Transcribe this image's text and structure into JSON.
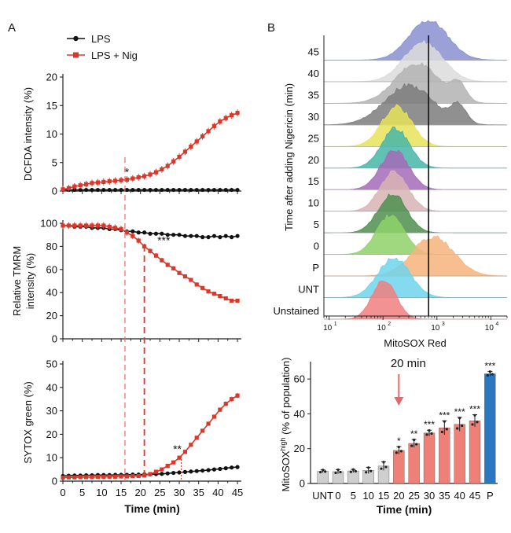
{
  "panel_labels": {
    "a": "A",
    "b": "B"
  },
  "colors": {
    "lps": "#111111",
    "nig": "#d9382b",
    "grey_bar": "#cfcfcf",
    "red_bar": "#ee8078",
    "blue_bar": "#2b78c2",
    "arrow": "#e06a6a"
  },
  "legend": {
    "lps": "LPS",
    "nig": "LPS + Nig"
  },
  "chart_data": [
    {
      "type": "line",
      "id": "dcfda",
      "ylabel": "DCFDA intensity (%)",
      "xlabel": "",
      "x": [
        0,
        1.5,
        3,
        4.5,
        6,
        7.5,
        9,
        10.5,
        12,
        13.5,
        15,
        16.5,
        18,
        19.5,
        21,
        22.5,
        24,
        25.5,
        27,
        28.5,
        30,
        31.5,
        33,
        34.5,
        36,
        37.5,
        39,
        40.5,
        42,
        43.5,
        45
      ],
      "ylim": [
        0,
        20
      ],
      "yticks": [
        0,
        5,
        10,
        15,
        20
      ],
      "series": [
        {
          "name": "LPS",
          "color": "#111111",
          "values": [
            0.2,
            0.2,
            0.2,
            0.2,
            0.2,
            0.2,
            0.2,
            0.2,
            0.2,
            0.2,
            0.2,
            0.2,
            0.2,
            0.2,
            0.2,
            0.2,
            0.2,
            0.2,
            0.2,
            0.2,
            0.2,
            0.2,
            0.2,
            0.2,
            0.2,
            0.2,
            0.2,
            0.2,
            0.2,
            0.2,
            0.2
          ]
        },
        {
          "name": "LPS + Nig",
          "color": "#d9382b",
          "values": [
            0.3,
            0.5,
            0.8,
            1.0,
            1.2,
            1.4,
            1.5,
            1.6,
            1.7,
            1.8,
            1.9,
            2.0,
            2.2,
            2.4,
            2.6,
            2.9,
            3.3,
            3.8,
            4.4,
            5.2,
            6.0,
            6.9,
            7.8,
            8.7,
            9.6,
            10.5,
            11.4,
            12.2,
            12.8,
            13.3,
            13.7
          ]
        }
      ],
      "annotations": [
        {
          "x": 16.5,
          "y": 2.7,
          "text": "*"
        }
      ]
    },
    {
      "type": "line",
      "id": "tmrm",
      "ylabel": "Relative TMRM intensity (%)",
      "ylabel_lines": [
        "Relative TMRM",
        "intensity (%)"
      ],
      "xlabel": "",
      "x": [
        0,
        1.5,
        3,
        4.5,
        6,
        7.5,
        9,
        10.5,
        12,
        13.5,
        15,
        16.5,
        18,
        19.5,
        21,
        22.5,
        24,
        25.5,
        27,
        28.5,
        30,
        31.5,
        33,
        34.5,
        36,
        37.5,
        39,
        40.5,
        42,
        43.5,
        45
      ],
      "ylim": [
        0,
        100
      ],
      "yticks": [
        0,
        20,
        40,
        60,
        80,
        100
      ],
      "series": [
        {
          "name": "LPS",
          "color": "#111111",
          "values": [
            98,
            98,
            97,
            97,
            97,
            96,
            96,
            96,
            95,
            95,
            94,
            93,
            93,
            92,
            92,
            91,
            91,
            91,
            90,
            90,
            90,
            89,
            89,
            89,
            88,
            88,
            89,
            88,
            89,
            88,
            89
          ]
        },
        {
          "name": "LPS + Nig",
          "color": "#d9382b",
          "values": [
            98,
            98,
            98,
            98,
            98,
            98,
            98,
            98,
            97,
            96,
            95,
            92,
            89,
            85,
            80,
            76,
            72,
            68,
            64,
            61,
            57,
            54,
            51,
            47,
            44,
            41,
            39,
            37,
            35,
            33,
            33
          ]
        }
      ],
      "annotations": [
        {
          "x": 26,
          "y": 82,
          "text": "***"
        }
      ]
    },
    {
      "type": "line",
      "id": "sytox",
      "ylabel": "SYTOX green (%)",
      "xlabel": "Time (min)",
      "x": [
        0,
        1.5,
        3,
        4.5,
        6,
        7.5,
        9,
        10.5,
        12,
        13.5,
        15,
        16.5,
        18,
        19.5,
        21,
        22.5,
        24,
        25.5,
        27,
        28.5,
        30,
        31.5,
        33,
        34.5,
        36,
        37.5,
        39,
        40.5,
        42,
        43.5,
        45
      ],
      "xticks": [
        0,
        5,
        10,
        15,
        20,
        25,
        30,
        35,
        40,
        45
      ],
      "ylim": [
        0,
        50
      ],
      "yticks": [
        0,
        10,
        20,
        30,
        40,
        50
      ],
      "series": [
        {
          "name": "LPS",
          "color": "#111111",
          "values": [
            2.2,
            2.3,
            2.4,
            2.4,
            2.5,
            2.5,
            2.6,
            2.6,
            2.6,
            2.7,
            2.7,
            2.7,
            2.8,
            2.8,
            2.9,
            2.9,
            3.0,
            3.1,
            3.3,
            3.5,
            3.7,
            3.9,
            4.1,
            4.3,
            4.5,
            4.7,
            5.0,
            5.2,
            5.5,
            5.8,
            6.0
          ]
        },
        {
          "name": "LPS + Nig",
          "color": "#d9382b",
          "values": [
            1.5,
            1.6,
            1.6,
            1.7,
            1.7,
            1.7,
            1.8,
            1.8,
            1.9,
            1.9,
            2.0,
            2.0,
            2.1,
            2.2,
            2.4,
            3.0,
            4.0,
            5.0,
            6.5,
            8.0,
            10.0,
            12.5,
            15.5,
            18.5,
            21.5,
            24.5,
            27.5,
            30.5,
            33.0,
            35.0,
            36.5
          ]
        }
      ],
      "annotations": [
        {
          "x": 29.5,
          "y": 12,
          "text": "**"
        }
      ]
    },
    {
      "type": "histogram",
      "id": "mitosox_hist",
      "xlabel": "MitoSOX Red",
      "xticks": [
        {
          "value": 10,
          "label": "10",
          "sup": "1"
        },
        {
          "value": 100,
          "label": "10",
          "sup": "2"
        },
        {
          "value": 1000,
          "label": "10",
          "sup": "3"
        },
        {
          "value": 10000,
          "label": "10",
          "sup": "4"
        }
      ],
      "xscale": "log",
      "xlim": [
        8,
        20000
      ],
      "gate": 700,
      "ylabel": "Time after adding Nigericin (min)",
      "rows": [
        {
          "label": "45",
          "color": "#8a8fd0",
          "peak": 700,
          "width": 0.36
        },
        {
          "label": "40",
          "color": "#dcdcdc",
          "peak": 560,
          "width": 0.36
        },
        {
          "label": "35",
          "color": "#b3b3b3",
          "peak": 420,
          "width": 0.4
        },
        {
          "label": "30",
          "color": "#7d7d7d",
          "peak": 300,
          "width": 0.45
        },
        {
          "label": "25",
          "color": "#e8e35a",
          "peak": 180,
          "width": 0.28
        },
        {
          "label": "20",
          "color": "#46b6a8",
          "peak": 170,
          "width": 0.26
        },
        {
          "label": "15",
          "color": "#a56bb8",
          "peak": 165,
          "width": 0.26
        },
        {
          "label": "10",
          "color": "#d8b4b4",
          "peak": 160,
          "width": 0.26
        },
        {
          "label": "5",
          "color": "#4f8f4f",
          "peak": 150,
          "width": 0.26
        },
        {
          "label": "0",
          "color": "#8fd16a",
          "peak": 140,
          "width": 0.26
        },
        {
          "label": "P",
          "color": "#f6b47d",
          "peak": 850,
          "width": 0.38
        },
        {
          "label": "UNT",
          "color": "#6ed3ec",
          "peak": 160,
          "width": 0.3
        },
        {
          "label": "Unstained",
          "color": "#f07f7f",
          "peak": 105,
          "width": 0.22
        }
      ]
    },
    {
      "type": "bar",
      "id": "mitosox_bar",
      "ylabel": "MitoSOXhigh (% of population)",
      "ylabel_parts": {
        "pre": "MitoSOX",
        "sup": "high",
        "post": " (% of population)"
      },
      "xlabel": "Time (min)",
      "categories": [
        "UNT",
        "0",
        "5",
        "10",
        "15",
        "20",
        "25",
        "30",
        "35",
        "40",
        "45",
        "P"
      ],
      "values": [
        7.0,
        6.8,
        7.2,
        7.5,
        10.0,
        19.0,
        23.0,
        29.0,
        32.0,
        34.0,
        36.0,
        63.0
      ],
      "errors": [
        0.8,
        1.2,
        0.9,
        1.8,
        2.5,
        2.2,
        2.3,
        1.6,
        4.0,
        4.0,
        3.5,
        1.4
      ],
      "bar_colors": [
        "#cfcfcf",
        "#cfcfcf",
        "#cfcfcf",
        "#cfcfcf",
        "#cfcfcf",
        "#ee8078",
        "#ee8078",
        "#ee8078",
        "#ee8078",
        "#ee8078",
        "#ee8078",
        "#2b78c2"
      ],
      "significance": [
        "",
        "",
        "",
        "",
        "",
        "*",
        "**",
        "***",
        "***",
        "***",
        "***",
        "***"
      ],
      "ylim": [
        0,
        70
      ],
      "yticks": [
        0,
        20,
        40,
        60
      ],
      "arrow_label": "20 min",
      "arrow_at": "20"
    }
  ]
}
